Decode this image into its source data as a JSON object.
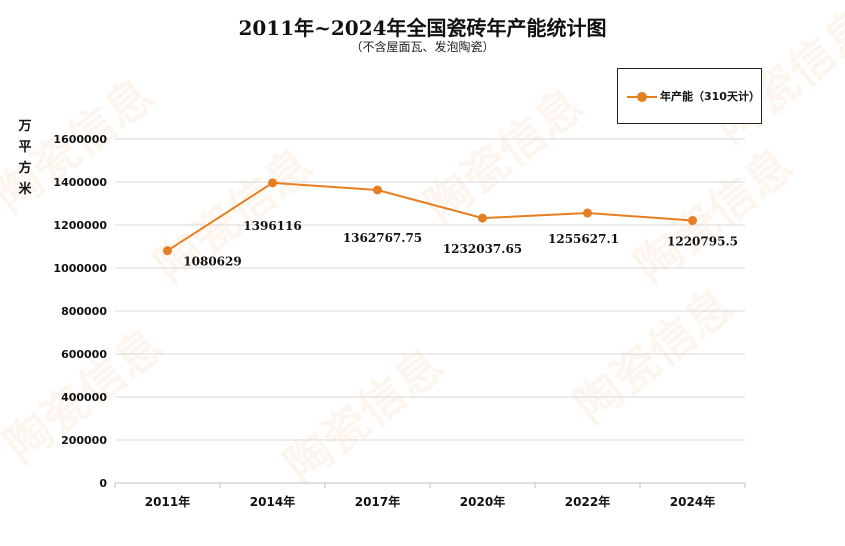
{
  "watermark": "陶瓷信息",
  "colors": {
    "series": "#e67e22",
    "grid": "#d9d9d9",
    "axis": "#bfbfbf",
    "text": "#111111"
  },
  "chart_data": {
    "type": "line",
    "title": "2011年~2024年全国瓷砖年产能统计图",
    "subtitle": "（不含屋面瓦、发泡陶瓷）",
    "ylabel": "万平方米",
    "xlabel": "",
    "categories": [
      "2011年",
      "2014年",
      "2017年",
      "2020年",
      "2022年",
      "2024年"
    ],
    "series": [
      {
        "name": "年产能（310天计）",
        "values": [
          1080629,
          1396116,
          1362767.75,
          1232037.65,
          1255627.1,
          1220795.5
        ]
      }
    ],
    "data_labels": [
      "1080629",
      "1396116",
      "1362767.75",
      "1232037.65",
      "1255627.1",
      "1220795.5"
    ],
    "ylim": [
      0,
      1600000
    ],
    "yticks": [
      0,
      200000,
      400000,
      600000,
      800000,
      1000000,
      1200000,
      1400000,
      1600000
    ],
    "ytick_labels": [
      "0",
      "200000",
      "400000",
      "600000",
      "800000",
      "1000000",
      "1200000",
      "1400000",
      "1600000"
    ],
    "grid": true,
    "legend_position": "top-right"
  }
}
